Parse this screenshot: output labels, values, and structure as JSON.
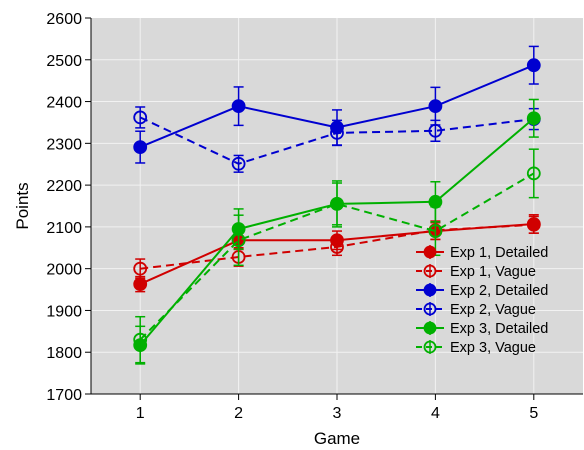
{
  "chart_data": {
    "type": "line",
    "title": "",
    "xlabel": "Game",
    "ylabel": "Points",
    "x": [
      1,
      2,
      3,
      4,
      5
    ],
    "xlim": [
      0.5,
      5.5
    ],
    "ylim": [
      1700,
      2600
    ],
    "xticks": [
      "1",
      "2",
      "3",
      "4",
      "5"
    ],
    "yticks": [
      "1700",
      "1800",
      "1900",
      "2000",
      "2100",
      "2200",
      "2300",
      "2400",
      "2500",
      "2600"
    ],
    "grid": true,
    "background": "#d9d9d9",
    "legend_position": "bottom-right",
    "series": [
      {
        "name": "Exp 1, Detailed",
        "color": "#d00000",
        "style": "solid",
        "marker": "filled-circle",
        "values": [
          1963,
          2068,
          2068,
          2090,
          2107
        ],
        "errors": [
          18,
          22,
          22,
          20,
          22
        ]
      },
      {
        "name": "Exp 1, Vague",
        "color": "#d00000",
        "style": "dashed",
        "marker": "open-circle",
        "values": [
          2000,
          2028,
          2052,
          2092,
          2105
        ],
        "errors": [
          23,
          22,
          20,
          22,
          20
        ]
      },
      {
        "name": "Exp 2, Detailed",
        "color": "#0000d0",
        "style": "solid",
        "marker": "filled-circle",
        "values": [
          2291,
          2389,
          2338,
          2389,
          2487
        ],
        "errors": [
          38,
          46,
          42,
          45,
          45
        ]
      },
      {
        "name": "Exp 2, Vague",
        "color": "#0000d0",
        "style": "dashed",
        "marker": "open-circle",
        "values": [
          2362,
          2251,
          2325,
          2330,
          2358
        ],
        "errors": [
          25,
          20,
          30,
          25,
          25
        ]
      },
      {
        "name": "Exp 3, Detailed",
        "color": "#00b000",
        "style": "solid",
        "marker": "filled-circle",
        "values": [
          1817,
          2095,
          2155,
          2160,
          2360
        ],
        "errors": [
          45,
          48,
          50,
          48,
          45
        ]
      },
      {
        "name": "Exp 3, Vague",
        "color": "#00b000",
        "style": "dashed",
        "marker": "open-circle",
        "values": [
          1830,
          2068,
          2155,
          2090,
          2228
        ],
        "errors": [
          55,
          60,
          55,
          58,
          58
        ]
      }
    ]
  }
}
